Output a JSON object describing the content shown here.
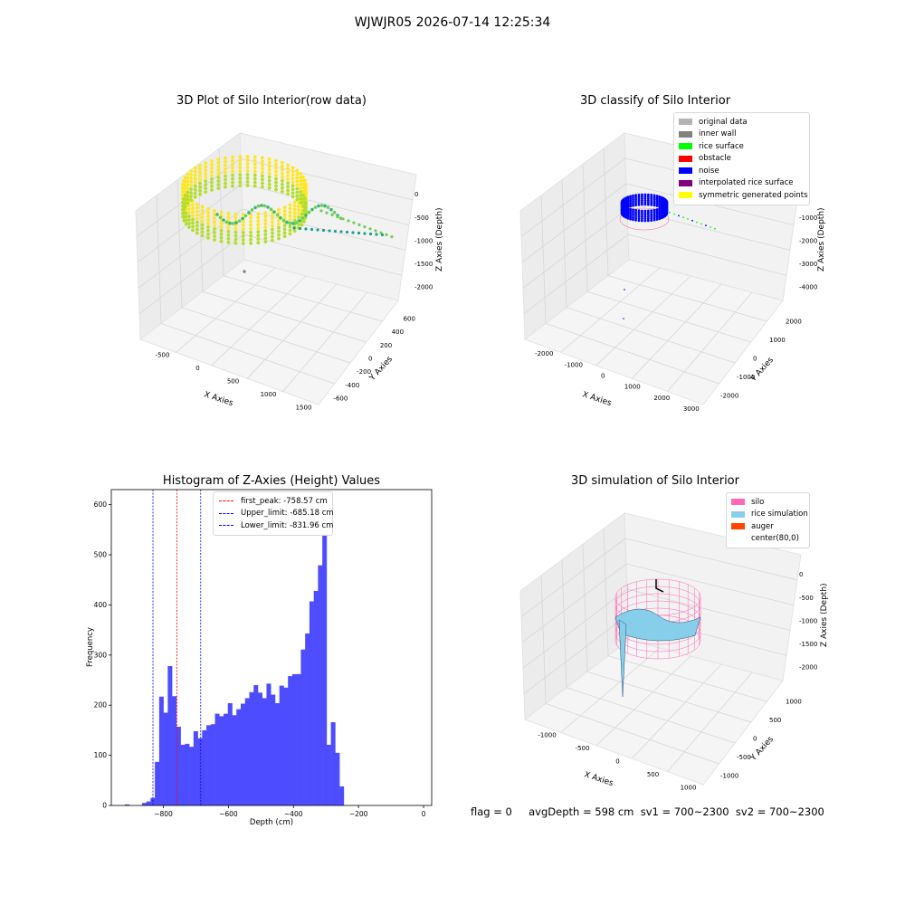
{
  "suptitle": "WJWJR05 2026-07-14 12:25:34",
  "status_line": "flag = 0     avgDepth = 598 cm  sv1 = 700~2300  sv2 = 700~2300",
  "plot1": {
    "title": "3D Plot of Silo Interior(row data)",
    "xlabel": "X Axies",
    "ylabel": "Y Axies",
    "zlabel": "Z Axies (Depth)",
    "xticks": [
      "-500",
      "0",
      "500",
      "1000",
      "1500"
    ],
    "yticks": [
      "-600",
      "-400",
      "-200",
      "0",
      "200",
      "400",
      "600"
    ],
    "zticks": [
      "0",
      "-500",
      "-1000",
      "-1500",
      "-2000"
    ],
    "colors": {
      "a": "#fde725",
      "b": "#b5de2b",
      "c": "#6ece58",
      "d": "#35b779",
      "e": "#1f9e89"
    }
  },
  "plot2": {
    "title": "3D classify of Silo Interior",
    "xlabel": "X Axies",
    "ylabel": "Y Axies",
    "zlabel": "Z Axies (Depth)",
    "xticks": [
      "-2000",
      "-1000",
      "0",
      "1000",
      "2000",
      "3000"
    ],
    "yticks": [
      "-2000",
      "-1000",
      "0",
      "1000",
      "2000"
    ],
    "zticks": [
      "0",
      "-1000",
      "-2000",
      "-3000",
      "-4000"
    ],
    "legend": [
      {
        "label": "original data",
        "color": "#b3b3b3"
      },
      {
        "label": "inner wall",
        "color": "#808080"
      },
      {
        "label": "rice surface",
        "color": "#00ff00"
      },
      {
        "label": "obstacle",
        "color": "#ff0000"
      },
      {
        "label": "noise",
        "color": "#0000ff"
      },
      {
        "label": "interpolated rice surface",
        "color": "#800080"
      },
      {
        "label": "symmetric generated points",
        "color": "#ffff00"
      }
    ]
  },
  "plot4": {
    "title": "3D simulation of Silo Interior",
    "xlabel": "X Axies",
    "ylabel": "Y Axies",
    "zlabel": "Z Axies (Depth)",
    "xticks": [
      "-1000",
      "-500",
      "0",
      "500",
      "1000"
    ],
    "yticks": [
      "-1000",
      "-500",
      "0",
      "500",
      "1000"
    ],
    "zticks": [
      "0",
      "-500",
      "-1000",
      "-1500",
      "-2000"
    ],
    "legend": [
      {
        "label": "silo",
        "color": "#ff69b4"
      },
      {
        "label": "rice simulation",
        "color": "#87ceeb"
      },
      {
        "label": "auger",
        "color": "#ff4500"
      },
      {
        "label": "center(80,0)",
        "color": "#ffffff"
      }
    ]
  },
  "chart_data": {
    "type": "bar",
    "title": "Histogram of Z-Axies (Height) Values",
    "xlabel": "Depth (cm)",
    "ylabel": "Frequency",
    "xlim": [
      -960,
      25
    ],
    "ylim": [
      0,
      630
    ],
    "xticks": [
      -800,
      -600,
      -400,
      -200,
      0
    ],
    "yticks": [
      0,
      100,
      200,
      300,
      400,
      500,
      600
    ],
    "bar_color": "#4d4dff",
    "bin_start": -918.5,
    "bin_width": 13.2,
    "values": [
      2,
      0,
      0,
      0,
      5,
      8,
      15,
      87,
      217,
      185,
      278,
      218,
      157,
      121,
      123,
      117,
      148,
      134,
      150,
      160,
      162,
      183,
      178,
      183,
      204,
      180,
      192,
      203,
      214,
      226,
      240,
      225,
      214,
      243,
      221,
      204,
      239,
      235,
      258,
      262,
      262,
      311,
      343,
      407,
      428,
      479,
      601,
      121,
      166,
      105,
      38
    ],
    "vlines": [
      {
        "label": "first_peak: -758.57 cm",
        "x": -758.57,
        "color": "#ff0000"
      },
      {
        "label": "Upper_limit: -685.18 cm",
        "x": -685.18,
        "color": "#0000ff"
      },
      {
        "label": "Lower_limit: -831.96 cm",
        "x": -831.96,
        "color": "#0000ff"
      }
    ],
    "legend_position": "upper-left"
  }
}
